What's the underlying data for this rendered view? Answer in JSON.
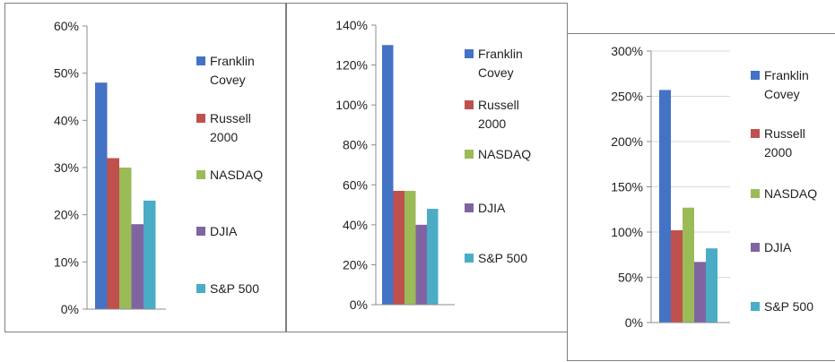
{
  "colors": {
    "Franklin Covey": "#4472c4",
    "Russell 2000": "#c0504d",
    "NASDAQ": "#9bbb59",
    "DJIA": "#8064a2",
    "S&P 500": "#4bacc6"
  },
  "chart_data": [
    {
      "type": "bar",
      "categories": [
        ""
      ],
      "ylim": [
        0,
        60
      ],
      "yticks": [
        "0%",
        "10%",
        "20%",
        "30%",
        "40%",
        "50%",
        "60%"
      ],
      "grid": false,
      "legend": "right",
      "series": [
        {
          "name": "Franklin Covey",
          "label": [
            "Franklin",
            "Covey"
          ],
          "values": [
            48
          ]
        },
        {
          "name": "Russell 2000",
          "label": [
            "Russell",
            "2000"
          ],
          "values": [
            32
          ]
        },
        {
          "name": "NASDAQ",
          "label": [
            "NASDAQ"
          ],
          "values": [
            30
          ]
        },
        {
          "name": "DJIA",
          "label": [
            "DJIA"
          ],
          "values": [
            18
          ]
        },
        {
          "name": "S&P 500",
          "label": [
            "S&P 500"
          ],
          "values": [
            23
          ]
        }
      ]
    },
    {
      "type": "bar",
      "categories": [
        ""
      ],
      "ylim": [
        0,
        140
      ],
      "yticks": [
        "0%",
        "20%",
        "40%",
        "60%",
        "80%",
        "100%",
        "120%",
        "140%"
      ],
      "grid": false,
      "legend": "right",
      "series": [
        {
          "name": "Franklin Covey",
          "label": [
            "Franklin",
            "Covey"
          ],
          "values": [
            130
          ]
        },
        {
          "name": "Russell 2000",
          "label": [
            "Russell",
            "2000"
          ],
          "values": [
            57
          ]
        },
        {
          "name": "NASDAQ",
          "label": [
            "NASDAQ"
          ],
          "values": [
            57
          ]
        },
        {
          "name": "DJIA",
          "label": [
            "DJIA"
          ],
          "values": [
            40
          ]
        },
        {
          "name": "S&P 500",
          "label": [
            "S&P 500"
          ],
          "values": [
            48
          ]
        }
      ]
    },
    {
      "type": "bar",
      "categories": [
        ""
      ],
      "ylim": [
        0,
        300
      ],
      "yticks": [
        "0%",
        "50%",
        "100%",
        "150%",
        "200%",
        "250%",
        "300%"
      ],
      "grid": true,
      "legend": "right",
      "series": [
        {
          "name": "Franklin Covey",
          "label": [
            "Franklin",
            "Covey"
          ],
          "values": [
            257
          ]
        },
        {
          "name": "Russell 2000",
          "label": [
            "Russell",
            "2000"
          ],
          "values": [
            102
          ]
        },
        {
          "name": "NASDAQ",
          "label": [
            "NASDAQ"
          ],
          "values": [
            127
          ]
        },
        {
          "name": "DJIA",
          "label": [
            "DJIA"
          ],
          "values": [
            67
          ]
        },
        {
          "name": "S&P 500",
          "label": [
            "S&P 500"
          ],
          "values": [
            82
          ]
        }
      ]
    }
  ]
}
